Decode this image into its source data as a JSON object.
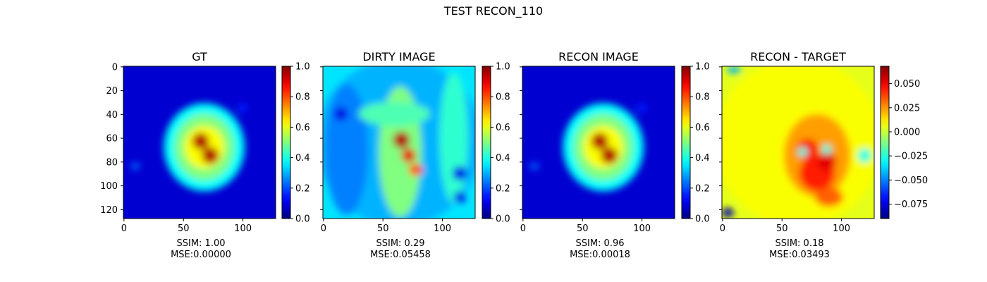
{
  "figure": {
    "suptitle": "TEST RECON_110"
  },
  "chart_data": [
    {
      "type": "heatmap",
      "title": "GT",
      "colormap": "jet",
      "image_size": [
        128,
        128
      ],
      "xticks": [
        0,
        50,
        100
      ],
      "yticks": [
        0,
        20,
        40,
        60,
        80,
        100,
        120
      ],
      "show_y_tick_labels": true,
      "colorbar": {
        "range": [
          0.0,
          1.0
        ],
        "ticks": [
          "0.0",
          "0.2",
          "0.4",
          "0.6",
          "0.8",
          "1.0"
        ]
      },
      "caption_lines": [
        "SSIM: 1.00",
        "MSE:0.00000"
      ],
      "content": "source blob with two bright peaks near (65,62) and (73,75)"
    },
    {
      "type": "heatmap",
      "title": "DIRTY IMAGE",
      "colormap": "jet",
      "image_size": [
        128,
        128
      ],
      "xticks": [
        0,
        50,
        100
      ],
      "yticks": [
        0,
        20,
        40,
        60,
        80,
        100,
        120
      ],
      "show_y_tick_labels": false,
      "colorbar": {
        "range": [
          0.0,
          1.0
        ],
        "ticks": [
          "0.0",
          "0.2",
          "0.4",
          "0.6",
          "0.8",
          "1.0"
        ]
      },
      "caption_lines": [
        "SSIM: 0.29",
        "MSE:0.05458"
      ],
      "content": "noisy background with three peaks along a diagonal"
    },
    {
      "type": "heatmap",
      "title": "RECON IMAGE",
      "colormap": "jet",
      "image_size": [
        128,
        128
      ],
      "xticks": [
        0,
        50,
        100
      ],
      "yticks": [
        0,
        20,
        40,
        60,
        80,
        100,
        120
      ],
      "show_y_tick_labels": false,
      "colorbar": {
        "range": [
          0.0,
          1.0
        ],
        "ticks": [
          "0.0",
          "0.2",
          "0.4",
          "0.6",
          "0.8",
          "1.0"
        ]
      },
      "caption_lines": [
        "SSIM: 0.96",
        "MSE:0.00018"
      ],
      "content": "reconstruction closely matching GT"
    },
    {
      "type": "heatmap",
      "title": "RECON - TARGET",
      "colormap": "jet",
      "image_size": [
        128,
        128
      ],
      "xticks": [
        0,
        50,
        100
      ],
      "yticks": [
        0,
        20,
        40,
        60,
        80,
        100,
        120
      ],
      "show_y_tick_labels": false,
      "colorbar": {
        "range": [
          -0.09,
          0.068
        ],
        "ticks": [
          "0.050",
          "0.025",
          "0.000",
          "−0.025",
          "−0.050",
          "−0.075"
        ],
        "tick_values": [
          0.05,
          0.025,
          0.0,
          -0.025,
          -0.05,
          -0.075
        ]
      },
      "caption_lines": [
        "SSIM: 0.18",
        "MSE:0.03493"
      ],
      "content": "residual map, mostly near zero with positive region around source"
    }
  ]
}
